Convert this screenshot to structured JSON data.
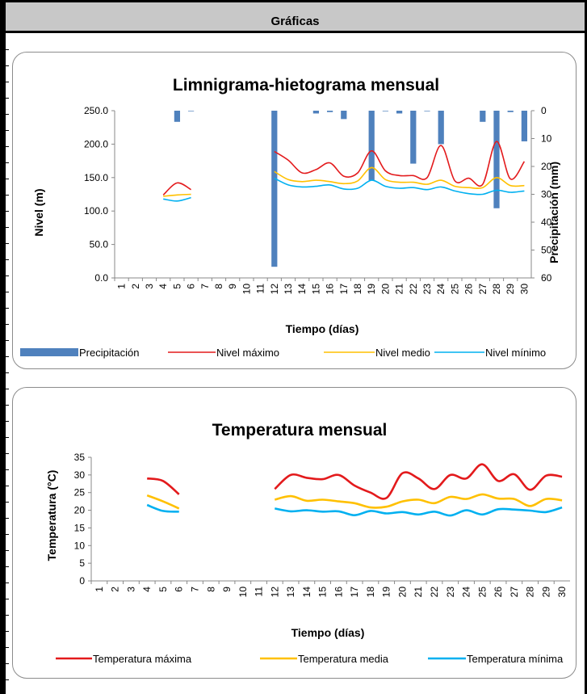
{
  "header": {
    "title": "Gráficas"
  },
  "charts": [
    {
      "id": "limnigrama",
      "type": "bar+line",
      "title": "Limnigrama-hietograma mensual",
      "xlabel": "Tiempo (días)",
      "ylabel": "Nivel (m)",
      "y2label": "Precipitación (mm)",
      "ylim": [
        0,
        250
      ],
      "yticks": [
        "0.0",
        "50.0",
        "100.0",
        "150.0",
        "200.0",
        "250.0"
      ],
      "y2lim": [
        60,
        0
      ],
      "y2ticks": [
        "0",
        "10",
        "20",
        "30",
        "40",
        "50",
        "60"
      ],
      "categories": [
        "1",
        "2",
        "3",
        "4",
        "5",
        "6",
        "7",
        "8",
        "9",
        "10",
        "11",
        "12",
        "13",
        "14",
        "15",
        "16",
        "17",
        "18",
        "19",
        "20",
        "21",
        "22",
        "23",
        "24",
        "25",
        "26",
        "27",
        "28",
        "29",
        "30"
      ],
      "bar_series": {
        "name": "Precipitación",
        "color": "#4f81bd",
        "values": [
          0,
          0,
          0,
          0,
          4,
          0.2,
          0,
          0,
          0,
          0,
          0,
          56,
          0,
          0,
          1,
          0.5,
          3,
          0,
          25,
          0.2,
          1,
          19,
          0.2,
          12,
          0,
          0,
          4,
          35,
          0.5,
          11
        ]
      },
      "series": [
        {
          "name": "Nivel máximo",
          "color": "#e31a1c",
          "values": [
            null,
            null,
            null,
            124,
            142,
            132,
            null,
            null,
            null,
            null,
            null,
            189,
            176,
            157,
            162,
            172,
            152,
            157,
            190,
            160,
            153,
            153,
            150,
            198,
            145,
            149,
            140,
            204,
            148,
            174
          ]
        },
        {
          "name": "Nivel medio",
          "color": "#ffc000",
          "values": [
            null,
            null,
            null,
            122,
            124,
            125,
            null,
            null,
            null,
            null,
            null,
            159,
            147,
            144,
            146,
            144,
            141,
            145,
            165,
            147,
            143,
            143,
            140,
            146,
            137,
            135,
            135,
            150,
            138,
            138
          ]
        },
        {
          "name": "Nivel mínimo",
          "color": "#00b0f0",
          "values": [
            null,
            null,
            null,
            118,
            115,
            120,
            null,
            null,
            null,
            null,
            null,
            149,
            139,
            136,
            137,
            139,
            133,
            134,
            146,
            137,
            134,
            135,
            132,
            136,
            130,
            126,
            125,
            131,
            128,
            130
          ]
        }
      ],
      "legend": "bottom"
    },
    {
      "id": "temperatura",
      "type": "line",
      "title": "Temperatura mensual",
      "xlabel": "Tiempo (días)",
      "ylabel": "Temperatura (°C)",
      "ylim": [
        0,
        35
      ],
      "yticks": [
        "0",
        "5",
        "10",
        "15",
        "20",
        "25",
        "30",
        "35"
      ],
      "categories": [
        "1",
        "2",
        "3",
        "4",
        "5",
        "6",
        "7",
        "8",
        "9",
        "10",
        "11",
        "12",
        "13",
        "14",
        "15",
        "16",
        "17",
        "18",
        "19",
        "20",
        "21",
        "22",
        "23",
        "24",
        "25",
        "26",
        "27",
        "28",
        "29",
        "30"
      ],
      "series": [
        {
          "name": "Temperatura máxima",
          "color": "#e31a1c",
          "values": [
            null,
            null,
            null,
            29,
            28.3,
            24.5,
            null,
            null,
            null,
            null,
            null,
            26,
            30,
            29.2,
            28.8,
            30,
            27,
            25,
            23.5,
            30.5,
            29,
            26,
            30,
            29,
            33,
            28.3,
            30.2,
            25.8,
            29.8,
            29.5
          ]
        },
        {
          "name": "Temperatura media",
          "color": "#ffc000",
          "values": [
            null,
            null,
            null,
            24.2,
            22.5,
            20.5,
            null,
            null,
            null,
            null,
            null,
            23,
            24,
            22.7,
            23,
            22.5,
            22,
            20.8,
            21,
            22.5,
            23,
            22,
            23.8,
            23.2,
            24.5,
            23.3,
            23.2,
            21.2,
            23.2,
            22.8
          ]
        },
        {
          "name": "Temperatura mínima",
          "color": "#00b0f0",
          "values": [
            null,
            null,
            null,
            21.5,
            19.8,
            19.6,
            null,
            null,
            null,
            null,
            null,
            20.5,
            19.7,
            20,
            19.6,
            19.7,
            18.6,
            19.8,
            19.1,
            19.5,
            18.8,
            19.6,
            18.5,
            20,
            18.8,
            20.3,
            20.2,
            19.9,
            19.5,
            20.8
          ]
        }
      ],
      "legend": "bottom"
    }
  ]
}
